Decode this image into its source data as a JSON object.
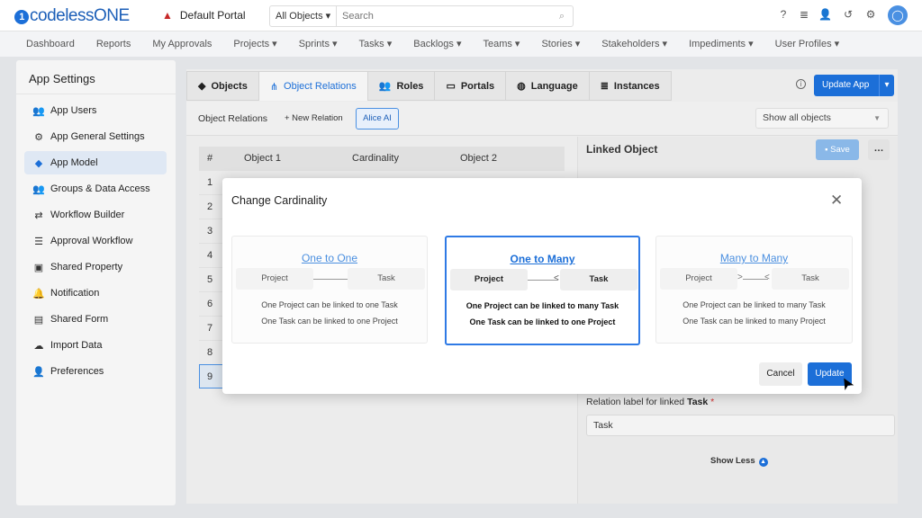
{
  "header": {
    "logo": "codelessONE",
    "portal": "Default Portal",
    "search_scope": "All Objects",
    "search_placeholder": "Search"
  },
  "nav": [
    "Dashboard",
    "Reports",
    "My Approvals",
    "Projects ▾",
    "Sprints ▾",
    "Tasks ▾",
    "Backlogs ▾",
    "Teams ▾",
    "Stories ▾",
    "Stakeholders ▾",
    "Impediments ▾",
    "User Profiles ▾"
  ],
  "sidebar": {
    "title": "App Settings",
    "items": [
      {
        "label": "App Users",
        "icon": "users-icon"
      },
      {
        "label": "App General Settings",
        "icon": "gear-icon"
      },
      {
        "label": "App Model",
        "icon": "cube-icon",
        "active": true
      },
      {
        "label": "Groups & Data Access",
        "icon": "groups-icon"
      },
      {
        "label": "Workflow Builder",
        "icon": "arrows-icon"
      },
      {
        "label": "Approval Workflow",
        "icon": "checklist-icon"
      },
      {
        "label": "Shared Property",
        "icon": "inbox-icon"
      },
      {
        "label": "Notification",
        "icon": "bell-icon"
      },
      {
        "label": "Shared Form",
        "icon": "form-icon"
      },
      {
        "label": "Import Data",
        "icon": "cloud-upload-icon"
      },
      {
        "label": "Preferences",
        "icon": "user-settings-icon"
      }
    ]
  },
  "tabs": [
    "Objects",
    "Object Relations",
    "Roles",
    "Portals",
    "Language",
    "Instances"
  ],
  "toolbar": {
    "update_app": "Update App",
    "section": "Object Relations",
    "new_relation": "+ New Relation",
    "alice": "Alice AI",
    "filter": "Show all objects"
  },
  "table": {
    "headers": [
      "#",
      "Object 1",
      "Cardinality",
      "Object 2"
    ],
    "rows": [
      "1",
      "2",
      "3",
      "4",
      "5",
      "6",
      "7",
      "8",
      "9"
    ]
  },
  "right": {
    "title": "Linked Object",
    "save": "Save",
    "relation_label_prefix": "Relation label for linked",
    "relation_label_obj": "Task",
    "relation_value": "Task",
    "show_less": "Show Less"
  },
  "modal": {
    "title": "Change Cardinality",
    "cancel": "Cancel",
    "update": "Update",
    "cards": [
      {
        "title": "One to One",
        "left": "Project",
        "right": "Task",
        "line1": "One Project can be linked to one Task",
        "line2": "One Task can be linked to one Project"
      },
      {
        "title": "One to Many",
        "left": "Project",
        "right": "Task",
        "line1": "One Project can be linked to many Task",
        "line2": "One Task can be linked to one Project",
        "selected": true
      },
      {
        "title": "Many to Many",
        "left": "Project",
        "right": "Task",
        "line1": "One Project can be linked to many Task",
        "line2": "One Task can be linked to many Project"
      }
    ]
  }
}
